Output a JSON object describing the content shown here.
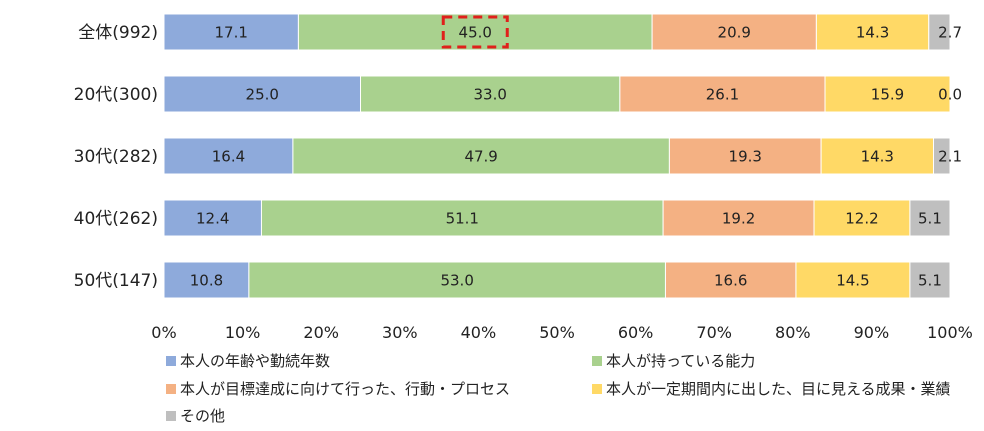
{
  "chart_data": {
    "type": "bar",
    "orientation": "horizontal",
    "stacked": true,
    "categories": [
      "全体(992)",
      "20代(300)",
      "30代(282)",
      "40代(262)",
      "50代(147)"
    ],
    "series": [
      {
        "name": "本人の年齢や勤続年数",
        "color": "#8eaadb",
        "values": [
          17.1,
          25.0,
          16.4,
          12.4,
          10.8
        ]
      },
      {
        "name": "本人が持っている能力",
        "color": "#a9d18e",
        "values": [
          45.0,
          33.0,
          47.9,
          51.1,
          53.0
        ]
      },
      {
        "name": "本人が目標達成に向けて行った、行動・プロセス",
        "color": "#f4b183",
        "values": [
          20.9,
          26.1,
          19.3,
          19.2,
          16.6
        ]
      },
      {
        "name": "本人が一定期間内に出した、目に見える成果・業績",
        "color": "#ffd966",
        "values": [
          14.3,
          15.9,
          14.3,
          12.2,
          14.5
        ]
      },
      {
        "name": "その他",
        "color": "#bfbfbf",
        "values": [
          2.7,
          0.0,
          2.1,
          5.1,
          5.1
        ]
      }
    ],
    "x_ticks": [
      "0%",
      "10%",
      "20%",
      "30%",
      "40%",
      "50%",
      "60%",
      "70%",
      "80%",
      "90%",
      "100%"
    ],
    "xlim": [
      0,
      100
    ],
    "grid": false,
    "legend_position": "bottom",
    "highlight": {
      "category_index": 0,
      "series_index": 1,
      "style": "red dashed box"
    }
  }
}
